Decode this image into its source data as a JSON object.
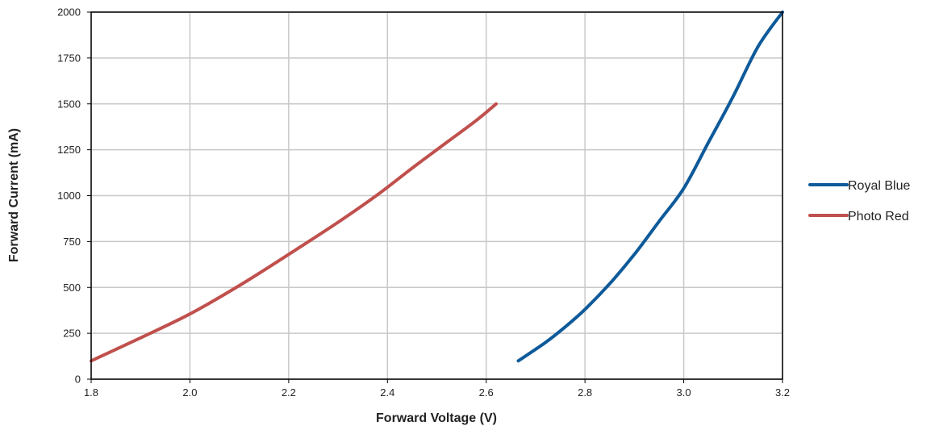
{
  "chart_data": {
    "type": "line",
    "xlabel": "Forward Voltage (V)",
    "ylabel": "Forward Current (mA)",
    "xlim": [
      1.8,
      3.2
    ],
    "ylim": [
      0,
      2000
    ],
    "xticks": [
      "1.8",
      "2.0",
      "2.2",
      "2.4",
      "2.6",
      "2.8",
      "3.0",
      "3.2"
    ],
    "yticks": [
      "0",
      "250",
      "500",
      "750",
      "1000",
      "1250",
      "1500",
      "1750",
      "2000"
    ],
    "grid": true,
    "legend_position": "right",
    "series": [
      {
        "name": "Royal Blue",
        "color": "#0e5a9a",
        "points": [
          [
            2.665,
            100
          ],
          [
            2.72,
            200
          ],
          [
            2.76,
            285
          ],
          [
            2.8,
            380
          ],
          [
            2.85,
            520
          ],
          [
            2.9,
            680
          ],
          [
            2.95,
            860
          ],
          [
            3.0,
            1040
          ],
          [
            3.05,
            1290
          ],
          [
            3.1,
            1540
          ],
          [
            3.15,
            1810
          ],
          [
            3.2,
            2000
          ]
        ]
      },
      {
        "name": "Photo Red",
        "color": "#c0504d",
        "points": [
          [
            1.8,
            100
          ],
          [
            1.9,
            225
          ],
          [
            2.0,
            355
          ],
          [
            2.1,
            510
          ],
          [
            2.2,
            680
          ],
          [
            2.3,
            855
          ],
          [
            2.38,
            1005
          ],
          [
            2.45,
            1150
          ],
          [
            2.52,
            1290
          ],
          [
            2.58,
            1410
          ],
          [
            2.62,
            1500
          ]
        ]
      }
    ]
  }
}
